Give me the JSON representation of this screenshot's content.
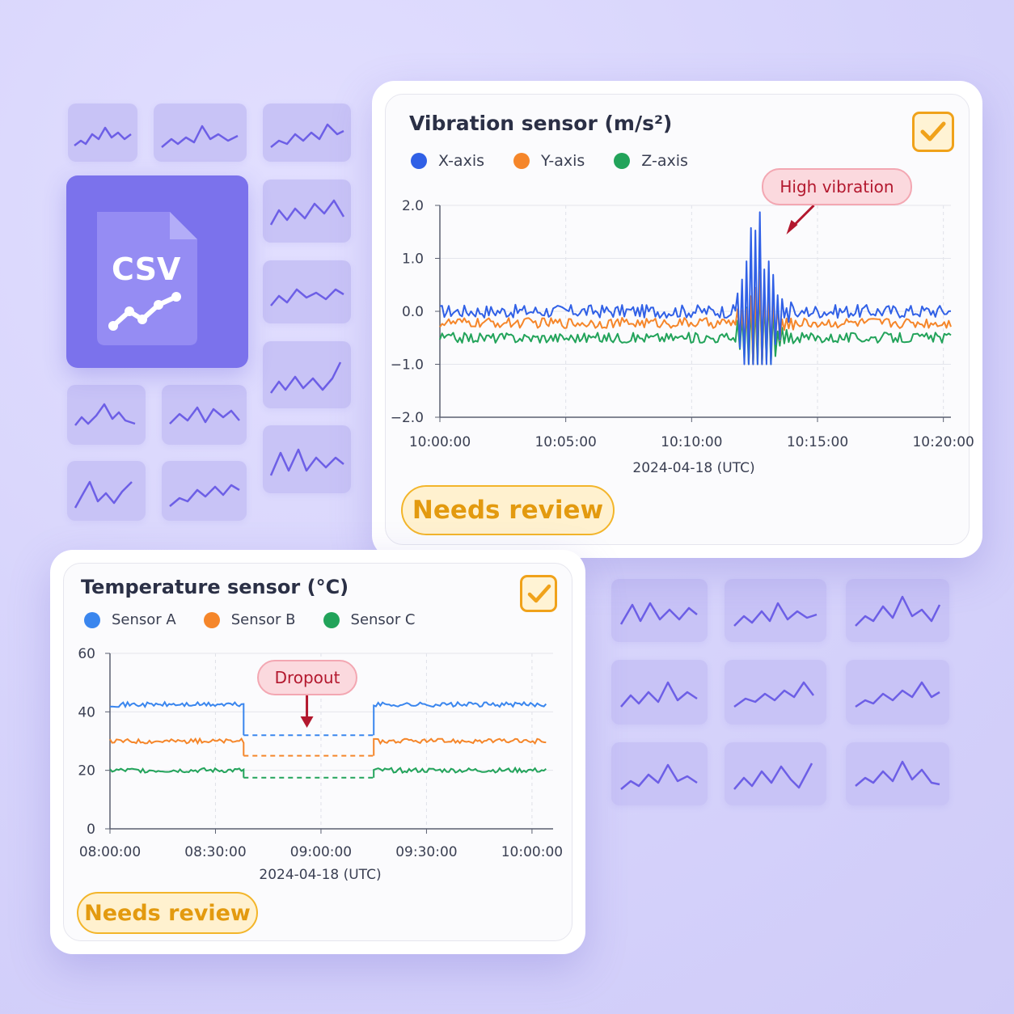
{
  "background": {
    "color": "#d6d3fb",
    "thumbnail_color": "#c8c3f6",
    "sparkline_color": "#6d5fe6"
  },
  "csv_file": {
    "label": "CSV",
    "icon": "csv-file-icon",
    "color": "#7b72ec"
  },
  "vibration_card": {
    "title": "Vibration sensor (m/s²)",
    "checkbox_icon": "checkmark-icon",
    "status_badge": "Needs review",
    "annotation": "High vibration",
    "chart_data": {
      "type": "line",
      "title": "Vibration sensor (m/s²)",
      "xlabel": "2024-04-18 (UTC)",
      "ylabel": "",
      "x_tick_labels": [
        "10:00:00",
        "10:05:00",
        "10:10:00",
        "10:15:00",
        "10:20:00"
      ],
      "y_tick_labels": [
        "2.0",
        "1.0",
        "0.0",
        "−1.0",
        "−2.0"
      ],
      "ylim": [
        -2.0,
        2.0
      ],
      "xlim_minutes": [
        0,
        20.3
      ],
      "grid": true,
      "legend_position": "top-left",
      "annotation": {
        "text": "High vibration",
        "x_minutes": 12.8,
        "y": 2.0
      },
      "series": [
        {
          "name": "X-axis",
          "color": "#3060e6",
          "baseline": 0.0,
          "noise_amplitude": 0.09,
          "burst_peak": 1.95
        },
        {
          "name": "Y-axis",
          "color": "#f5862a",
          "baseline": -0.22,
          "noise_amplitude": 0.07,
          "burst_peak": 0.9
        },
        {
          "name": "Z-axis",
          "color": "#22a35a",
          "baseline": -0.5,
          "noise_amplitude": 0.07,
          "burst_peak": 0.6
        }
      ],
      "burst_window_minutes": [
        11.8,
        14.3
      ]
    }
  },
  "temperature_card": {
    "title": "Temperature sensor (°C)",
    "checkbox_icon": "checkmark-icon",
    "status_badge": "Needs review",
    "annotation": "Dropout",
    "chart_data": {
      "type": "line",
      "title": "Temperature sensor (°C)",
      "xlabel": "2024-04-18 (UTC)",
      "ylabel": "",
      "x_tick_labels": [
        "08:00:00",
        "08:30:00",
        "09:00:00",
        "09:30:00",
        "10:00:00"
      ],
      "y_tick_labels": [
        "60",
        "40",
        "20",
        "0"
      ],
      "ylim": [
        0,
        60
      ],
      "xlim_minutes": [
        0,
        126
      ],
      "grid": true,
      "legend_position": "top-left",
      "dropout_window_minutes": [
        38,
        75
      ],
      "annotation": {
        "text": "Dropout",
        "x_minutes": 56
      },
      "series": [
        {
          "name": "Sensor A",
          "color": "#3a86ee",
          "value": 42.5,
          "dropout_value": 32
        },
        {
          "name": "Sensor B",
          "color": "#f5862a",
          "value": 30,
          "dropout_value": 25
        },
        {
          "name": "Sensor C",
          "color": "#22a35a",
          "value": 20,
          "dropout_value": 17.5
        }
      ]
    }
  }
}
